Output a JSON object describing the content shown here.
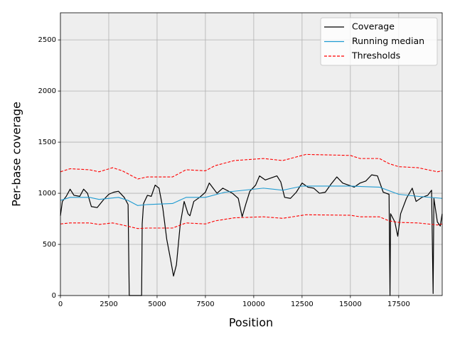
{
  "chart_data": {
    "type": "line",
    "xlabel": "Position",
    "ylabel": "Per-base coverage",
    "xlim": [
      0,
      19750
    ],
    "ylim": [
      0,
      2765
    ],
    "xticks": [
      0,
      2500,
      5000,
      7500,
      10000,
      12500,
      15000,
      17500
    ],
    "yticks": [
      0,
      500,
      1000,
      1500,
      2000,
      2500
    ],
    "grid": true,
    "legend": "upper right",
    "series": [
      {
        "name": "Coverage",
        "color": "#000000",
        "dash": false,
        "x": [
          0,
          100,
          300,
          500,
          700,
          1000,
          1200,
          1400,
          1600,
          1900,
          2200,
          2500,
          2750,
          3000,
          3300,
          3500,
          3560,
          4200,
          4230,
          4300,
          4500,
          4700,
          4900,
          5100,
          5300,
          5500,
          5700,
          5850,
          6000,
          6200,
          6400,
          6600,
          6700,
          6900,
          7200,
          7500,
          7700,
          7900,
          8100,
          8400,
          8600,
          8900,
          9200,
          9400,
          9600,
          9800,
          10100,
          10300,
          10600,
          10900,
          11200,
          11400,
          11600,
          11900,
          12200,
          12500,
          12800,
          13100,
          13400,
          13700,
          14000,
          14300,
          14600,
          14900,
          15200,
          15500,
          15800,
          16100,
          16400,
          16700,
          17000,
          17050,
          17080,
          17300,
          17450,
          17600,
          17900,
          18200,
          18400,
          18700,
          19000,
          19200,
          19280,
          19320,
          19500,
          19650,
          19750
        ],
        "values": [
          780,
          920,
          970,
          1040,
          980,
          970,
          1040,
          1000,
          870,
          860,
          930,
          990,
          1010,
          1020,
          960,
          890,
          0,
          0,
          700,
          900,
          980,
          970,
          1080,
          1050,
          850,
          550,
          350,
          190,
          300,
          700,
          920,
          800,
          780,
          920,
          960,
          1010,
          1100,
          1050,
          1000,
          1050,
          1030,
          1000,
          950,
          770,
          900,
          1020,
          1080,
          1170,
          1130,
          1150,
          1170,
          1110,
          960,
          950,
          1010,
          1100,
          1060,
          1050,
          1000,
          1010,
          1090,
          1160,
          1100,
          1080,
          1060,
          1100,
          1120,
          1180,
          1170,
          1010,
          990,
          0,
          800,
          720,
          580,
          800,
          950,
          1050,
          920,
          960,
          980,
          1030,
          20,
          950,
          720,
          680,
          800
        ]
      },
      {
        "name": "Running median",
        "color": "#1f9bd1",
        "dash": false,
        "x": [
          0,
          500,
          1500,
          2000,
          3000,
          3500,
          4000,
          4500,
          5800,
          6500,
          7500,
          8500,
          9500,
          10500,
          11500,
          12500,
          15000,
          16500,
          17500,
          18500,
          19750
        ],
        "values": [
          930,
          960,
          960,
          940,
          960,
          930,
          880,
          890,
          900,
          960,
          960,
          1010,
          1030,
          1050,
          1030,
          1070,
          1070,
          1060,
          990,
          970,
          950
        ]
      },
      {
        "name": "Thresholds",
        "color": "#ff0000",
        "dash": true,
        "x": [
          0,
          500,
          1500,
          2000,
          2700,
          3200,
          4000,
          4500,
          5800,
          6500,
          7500,
          8000,
          9000,
          10500,
          11500,
          12700,
          15000,
          15500,
          16500,
          17000,
          17500,
          18500,
          19500,
          19750
        ],
        "values": [
          1210,
          1240,
          1230,
          1210,
          1250,
          1220,
          1140,
          1160,
          1160,
          1230,
          1220,
          1270,
          1320,
          1340,
          1320,
          1380,
          1370,
          1340,
          1340,
          1290,
          1260,
          1250,
          1210,
          1220
        ],
        "lower": [
          700,
          710,
          710,
          695,
          710,
          690,
          655,
          660,
          660,
          710,
          700,
          730,
          760,
          770,
          755,
          790,
          785,
          770,
          770,
          730,
          715,
          710,
          690,
          700
        ]
      }
    ]
  }
}
